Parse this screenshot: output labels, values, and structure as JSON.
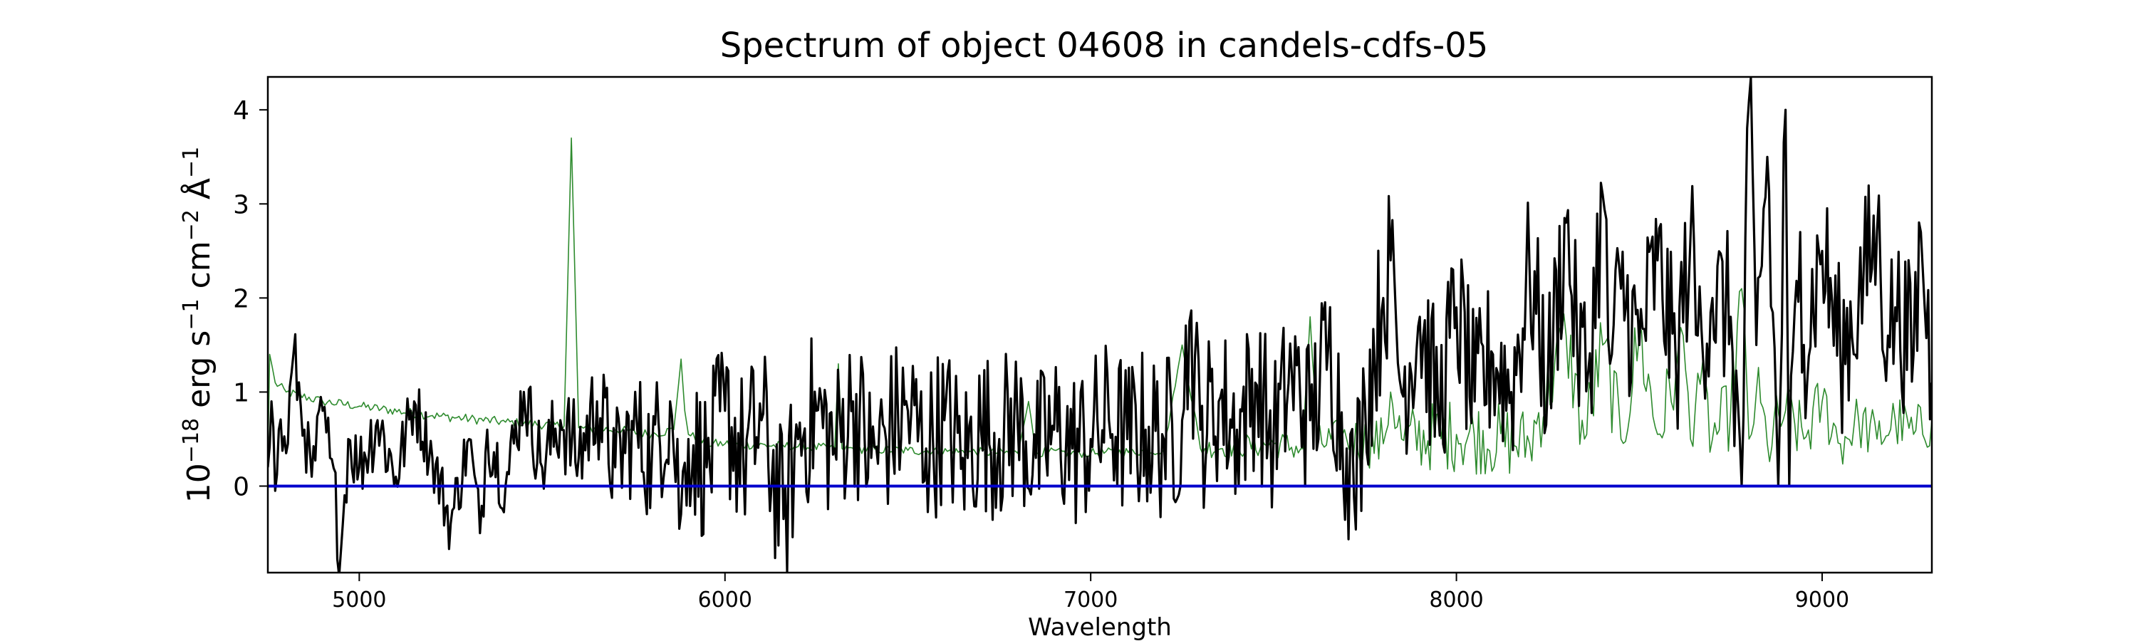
{
  "chart_data": {
    "type": "line",
    "title": "Spectrum of object 04608 in candels-cdfs-05",
    "xlabel": "Wavelength",
    "ylabel_parts": [
      "10",
      "−18",
      " erg s",
      "−1",
      " cm",
      "−2",
      " Å",
      "−1"
    ],
    "xlim": [
      4750,
      9300
    ],
    "ylim": [
      -0.92,
      4.35
    ],
    "x_ticks": [
      5000,
      6000,
      7000,
      8000,
      9000
    ],
    "y_ticks": [
      0,
      1,
      2,
      3,
      4
    ],
    "grid": false,
    "series": [
      {
        "key": "flux",
        "color": "#000000",
        "x": [
          4750,
          4760,
          4770,
          4780,
          4800,
          4820,
          4850,
          4870,
          4900,
          4920,
          4950,
          4970,
          5000,
          5050,
          5100,
          5150,
          5200,
          5250,
          5300,
          5330,
          5350,
          5400,
          5450,
          5500,
          5550,
          5600,
          5650,
          5700,
          5750,
          5800,
          5850,
          5880,
          5900,
          5950,
          6000,
          6050,
          6100,
          6160,
          6200,
          6250,
          6300,
          6350,
          6400,
          6450,
          6500,
          6550,
          6600,
          6650,
          6700,
          6750,
          6800,
          6850,
          6900,
          6950,
          7000,
          7050,
          7100,
          7150,
          7200,
          7250,
          7270,
          7300,
          7350,
          7400,
          7450,
          7500,
          7550,
          7600,
          7650,
          7700,
          7720,
          7750,
          7800,
          7820,
          7850,
          7900,
          7950,
          8000,
          8050,
          8100,
          8150,
          8200,
          8250,
          8300,
          8330,
          8360,
          8400,
          8420,
          8450,
          8500,
          8550,
          8600,
          8640,
          8660,
          8700,
          8750,
          8780,
          8800,
          8820,
          8850,
          8880,
          8900,
          8910,
          8940,
          8950,
          9000,
          9050,
          9100,
          9150,
          9180,
          9200,
          9250,
          9270,
          9300
        ],
        "y": [
          0.2,
          0.9,
          -0.05,
          0.6,
          0.35,
          1.4,
          0.6,
          0.1,
          0.8,
          0.3,
          -0.68,
          0.5,
          0.2,
          0.7,
          0.1,
          0.9,
          0.3,
          -0.4,
          0.5,
          -0.5,
          0.6,
          0.0,
          1.0,
          0.2,
          0.7,
          0.3,
          0.9,
          0.2,
          0.6,
          0.3,
          0.9,
          -0.3,
          0.5,
          0.2,
          0.8,
          0.3,
          0.7,
          -0.35,
          0.5,
          0.8,
          0.4,
          0.9,
          0.3,
          0.6,
          0.8,
          0.4,
          0.7,
          0.3,
          0.6,
          0.5,
          0.7,
          0.3,
          0.6,
          0.4,
          0.5,
          0.7,
          0.5,
          0.6,
          0.5,
          0.7,
          1.75,
          0.6,
          0.9,
          0.6,
          1.1,
          0.5,
          1.2,
          0.7,
          1.5,
          0.4,
          -0.12,
          0.9,
          2.0,
          2.4,
          1.0,
          1.8,
          0.8,
          1.9,
          0.9,
          1.4,
          1.0,
          2.3,
          1.1,
          2.8,
          1.5,
          1.2,
          3.1,
          1.3,
          2.1,
          1.5,
          2.4,
          1.3,
          2.65,
          1.6,
          2.0,
          1.8,
          0.0,
          4.1,
          1.5,
          3.5,
          0.0,
          4.0,
          0.0,
          2.7,
          1.5,
          2.5,
          1.4,
          2.0,
          2.7,
          1.6,
          1.9,
          1.4,
          2.7,
          1.1
        ],
        "noise": [
          0.0,
          0.35,
          0.35,
          0.4,
          0.35,
          0.4,
          0.35,
          0.35,
          0.35,
          0.4,
          0.45,
          0.4,
          0.4,
          0.45,
          0.4,
          0.35,
          0.35,
          0.35,
          0.35,
          0.4,
          0.4,
          0.4,
          0.4,
          0.45,
          0.5,
          0.55,
          0.6,
          0.65,
          0.7,
          0.75,
          0.8,
          0.8,
          0.8,
          0.85,
          0.9,
          0.9,
          0.9,
          0.9,
          0.9,
          0.9,
          0.9,
          0.9,
          0.9,
          0.9,
          0.9,
          0.9,
          0.9,
          0.9,
          0.9,
          0.9,
          0.9,
          0.9,
          0.9,
          0.9,
          0.9,
          0.9,
          0.9,
          0.9,
          0.9,
          0.9,
          0.9,
          0.9,
          0.9,
          0.9,
          0.9,
          0.9,
          0.9,
          0.9,
          0.9,
          0.9,
          0.9,
          0.9,
          0.9,
          0.9,
          0.9,
          0.9,
          0.9,
          0.9,
          0.9,
          0.9,
          0.9,
          0.9,
          0.9,
          0.9,
          0.9,
          0.9,
          0.9,
          0.9,
          0.9,
          0.9,
          0.9,
          0.9,
          0.9,
          0.9,
          0.9,
          0.9,
          0.9,
          0.9,
          0.9,
          0.9,
          0.9,
          0.9,
          0.9,
          0.9,
          0.9,
          0.9,
          0.9,
          0.9,
          0.9,
          0.9,
          0.9,
          0.9,
          0.9,
          0.9
        ]
      },
      {
        "key": "error",
        "color": "#2e8b2e",
        "x": [
          4750,
          4755,
          4770,
          4800,
          4900,
          5000,
          5200,
          5400,
          5560,
          5580,
          5600,
          5700,
          5800,
          5860,
          5880,
          5890,
          5900,
          5950,
          6000,
          6200,
          6300,
          6310,
          6320,
          6500,
          6800,
          6830,
          6850,
          7000,
          7200,
          7250,
          7300,
          7500,
          7580,
          7600,
          7620,
          7700,
          7800,
          7820,
          7850,
          8000,
          8200,
          8300,
          8350,
          8400,
          8450,
          8500,
          8550,
          8600,
          8620,
          8640,
          8660,
          8700,
          8750,
          8780,
          8800,
          8820,
          8850,
          8900,
          8950,
          9000,
          9050,
          9100,
          9150,
          9200,
          9250,
          9300
        ],
        "y": [
          0.3,
          1.4,
          1.1,
          1.0,
          0.9,
          0.85,
          0.75,
          0.68,
          0.64,
          3.7,
          0.62,
          0.6,
          0.55,
          0.6,
          1.35,
          0.8,
          0.55,
          0.45,
          0.45,
          0.42,
          0.4,
          1.3,
          0.4,
          0.38,
          0.35,
          0.9,
          0.36,
          0.35,
          0.38,
          1.5,
          0.4,
          0.45,
          0.4,
          1.8,
          0.45,
          0.5,
          0.45,
          1.0,
          0.5,
          0.55,
          0.45,
          1.6,
          0.5,
          1.5,
          0.5,
          1.6,
          0.55,
          1.2,
          1.6,
          0.5,
          1.2,
          0.5,
          0.8,
          2.1,
          0.5,
          1.0,
          0.45,
          0.8,
          0.5,
          0.9,
          0.45,
          0.7,
          0.5,
          0.7,
          0.55,
          0.7
        ],
        "noise": [
          0.0,
          0.0,
          0.05,
          0.05,
          0.05,
          0.05,
          0.05,
          0.05,
          0.05,
          0.0,
          0.05,
          0.05,
          0.05,
          0.05,
          0.0,
          0.05,
          0.05,
          0.05,
          0.05,
          0.05,
          0.05,
          0.0,
          0.05,
          0.05,
          0.05,
          0.0,
          0.05,
          0.05,
          0.05,
          0.0,
          0.1,
          0.15,
          0.15,
          0.0,
          0.2,
          0.25,
          0.3,
          0.3,
          0.35,
          0.4,
          0.4,
          0.45,
          0.45,
          0.45,
          0.45,
          0.45,
          0.45,
          0.4,
          0.3,
          0.3,
          0.35,
          0.4,
          0.4,
          0.4,
          0.4,
          0.4,
          0.4,
          0.35,
          0.35,
          0.35,
          0.3,
          0.3,
          0.3,
          0.3,
          0.3,
          0.3
        ]
      },
      {
        "key": "zero",
        "color": "#0000cc",
        "x": [
          4750,
          9300
        ],
        "y": [
          0,
          0
        ]
      }
    ]
  }
}
